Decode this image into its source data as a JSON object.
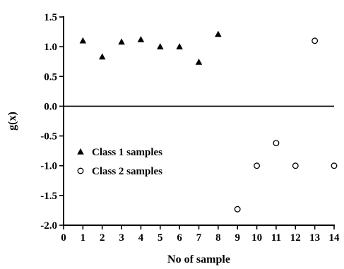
{
  "chart_data": {
    "type": "scatter",
    "title": "",
    "xlabel": "No of sample",
    "ylabel": "g(x)",
    "xlim": [
      0,
      14
    ],
    "ylim": [
      -2.0,
      1.5
    ],
    "xticks": [
      "0",
      "1",
      "2",
      "3",
      "4",
      "5",
      "6",
      "7",
      "8",
      "9",
      "10",
      "11",
      "12",
      "13",
      "14"
    ],
    "yticks": [
      "-2.0",
      "-1.5",
      "-1.0",
      "-0.5",
      "0.0",
      "0.5",
      "1.0",
      "1.5"
    ],
    "reference_line_y": 0,
    "grid": false,
    "legend_position": "left",
    "series": [
      {
        "name": "Class 1 samples",
        "marker": "filled-triangle",
        "points": [
          {
            "x": 1,
            "y": 1.1
          },
          {
            "x": 2,
            "y": 0.83
          },
          {
            "x": 3,
            "y": 1.08
          },
          {
            "x": 4,
            "y": 1.12
          },
          {
            "x": 5,
            "y": 1.0
          },
          {
            "x": 6,
            "y": 1.0
          },
          {
            "x": 7,
            "y": 0.74
          },
          {
            "x": 8,
            "y": 1.21
          }
        ]
      },
      {
        "name": "Class 2 samples",
        "marker": "open-circle",
        "points": [
          {
            "x": 9,
            "y": -1.73
          },
          {
            "x": 10,
            "y": -1.0
          },
          {
            "x": 11,
            "y": -0.62
          },
          {
            "x": 12,
            "y": -1.0
          },
          {
            "x": 13,
            "y": 1.1
          },
          {
            "x": 14,
            "y": -1.0
          }
        ]
      }
    ]
  }
}
